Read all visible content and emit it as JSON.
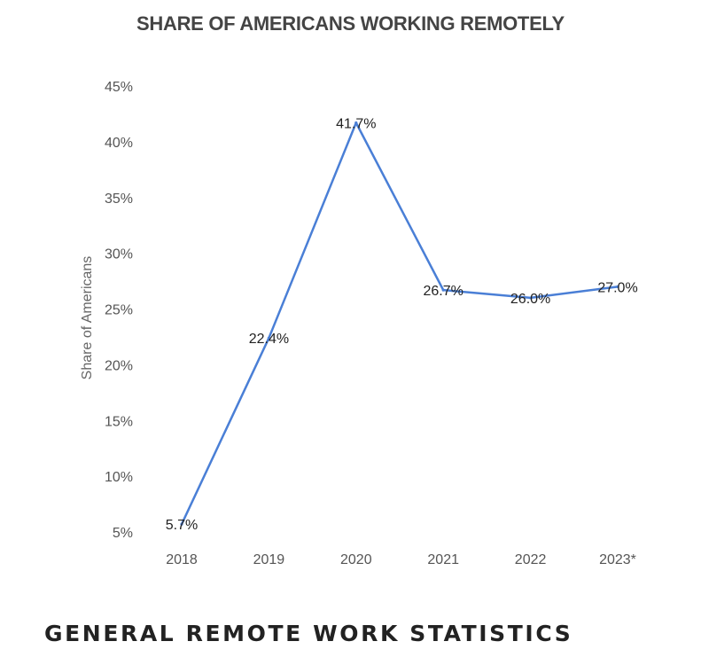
{
  "chart_data": {
    "type": "line",
    "title": "SHARE OF AMERICANS WORKING REMOTELY",
    "xlabel": "",
    "ylabel": "Share of Americans",
    "categories": [
      "2018",
      "2019",
      "2020",
      "2021",
      "2022",
      "2023*"
    ],
    "series": [
      {
        "values": [
          5.7,
          22.4,
          41.7,
          26.7,
          26.0,
          27.0
        ],
        "labels": [
          "5.7%",
          "22.4%",
          "41.7%",
          "26.7%",
          "26.0%",
          "27.0%"
        ],
        "color": "#4a7fd6"
      }
    ],
    "ylim": [
      5,
      45
    ],
    "yticks": [
      "5%",
      "10%",
      "15%",
      "20%",
      "25%",
      "30%",
      "35%",
      "40%",
      "45%"
    ],
    "grid": false,
    "legend": "none"
  },
  "section": {
    "heading": "GENERAL REMOTE WORK STATISTICS"
  }
}
